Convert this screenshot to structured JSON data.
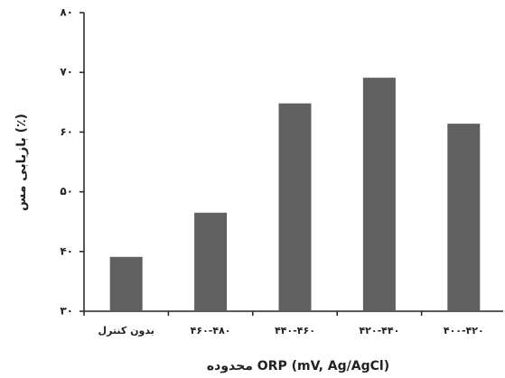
{
  "chart_data": {
    "type": "bar",
    "x_label": "محدوده ORP (mV, Ag/AgCl)",
    "y_label": "بازیابی مس (٪)",
    "categories": [
      "بدون کنترل",
      "۴۶۰-۴۸۰",
      "۴۴۰-۴۶۰",
      "۴۲۰-۴۴۰",
      "۴۰۰-۴۲۰"
    ],
    "values": [
      39.1,
      46.5,
      64.8,
      69.1,
      61.4
    ],
    "color": "#606060",
    "ylim": [
      30,
      80
    ],
    "yticks": [
      {
        "value": 30,
        "label": "۳۰"
      },
      {
        "value": 40,
        "label": "۴۰"
      },
      {
        "value": 50,
        "label": "۵۰"
      },
      {
        "value": 60,
        "label": "۶۰"
      },
      {
        "value": 70,
        "label": "۷۰"
      },
      {
        "value": 80,
        "label": "۸۰"
      }
    ],
    "grid": false
  }
}
